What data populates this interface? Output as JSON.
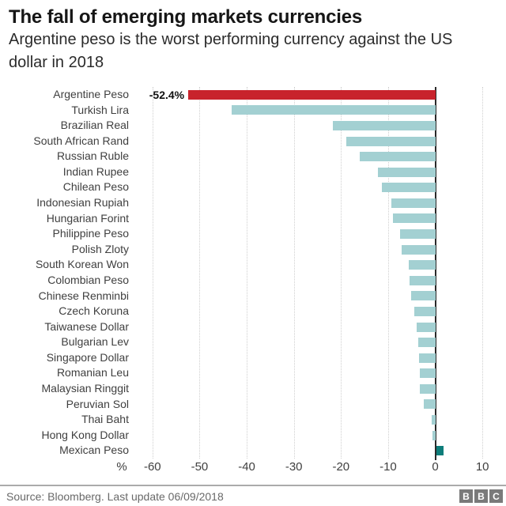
{
  "header": {
    "title": "The fall of emerging markets currencies",
    "subtitle": "Argentine peso is the worst performing currency against the US dollar in 2018"
  },
  "chart_data": {
    "type": "bar",
    "orientation": "horizontal",
    "unit": "%",
    "title": "The fall of emerging markets currencies",
    "subtitle": "Argentine peso is the worst performing currency against the US dollar in 2018",
    "categories": [
      "Argentine Peso",
      "Turkish Lira",
      "Brazilian Real",
      "South African Rand",
      "Russian Ruble",
      "Indian Rupee",
      "Chilean Peso",
      "Indonesian Rupiah",
      "Hungarian Forint",
      "Philippine Peso",
      "Polish Zloty",
      "South Korean Won",
      "Colombian Peso",
      "Chinese Renminbi",
      "Czech Koruna",
      "Taiwanese Dollar",
      "Bulgarian Lev",
      "Singapore Dollar",
      "Romanian Leu",
      "Malaysian Ringgit",
      "Peruvian Sol",
      "Thai Baht",
      "Hong Kong Dollar",
      "Mexican Peso"
    ],
    "values": [
      -52.4,
      -43.2,
      -21.8,
      -18.9,
      -16.0,
      -12.2,
      -11.4,
      -9.3,
      -8.9,
      -7.5,
      -7.1,
      -5.7,
      -5.4,
      -5.1,
      -4.5,
      -3.9,
      -3.6,
      -3.4,
      -3.3,
      -3.2,
      -2.5,
      -0.8,
      -0.6,
      1.5
    ],
    "annotation": {
      "category_index": 0,
      "text": "-52.4%"
    },
    "highlight_index": 0,
    "x_ticks": [
      -60,
      -50,
      -40,
      -30,
      -20,
      -10,
      0,
      10
    ],
    "xlim": [
      -65,
      15
    ],
    "axis_unit_label": "%",
    "grid": "vertical-dotted",
    "legend": "none",
    "colors": {
      "highlight": "#c8232c",
      "default": "#a3d0d2",
      "positive": "#0e7d7a",
      "gridline": "#cfcfcf",
      "zero_line": "#2a2a2a"
    }
  },
  "footer": {
    "source": "Source: Bloomberg. Last update 06/09/2018",
    "logo_letters": [
      "B",
      "B",
      "C"
    ]
  }
}
